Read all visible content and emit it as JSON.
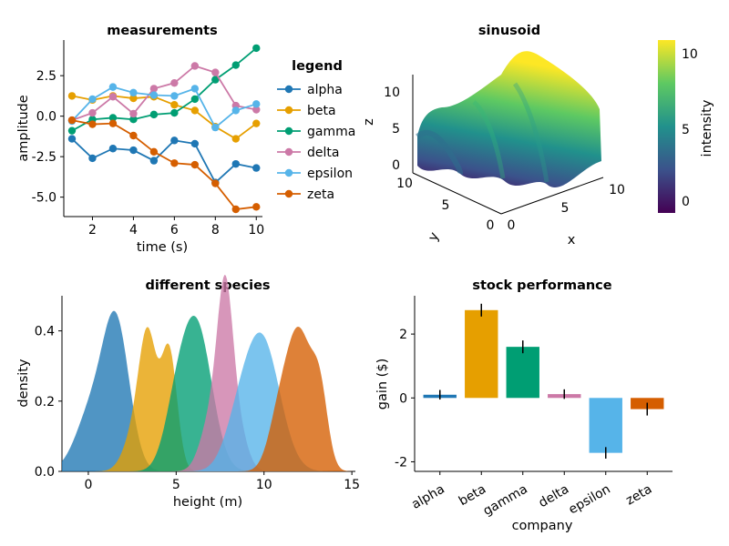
{
  "chart_data": [
    {
      "type": "line",
      "title": "measurements",
      "xlabel": "time (s)",
      "ylabel": "amplitude",
      "xlim": [
        0.6,
        10.3
      ],
      "ylim": [
        -6.2,
        4.7
      ],
      "xticks": [
        2,
        4,
        6,
        8,
        10
      ],
      "yticks": [
        2.5,
        0.0,
        -2.5,
        -5.0
      ],
      "ytick_labels": [
        "2.5",
        "0.0",
        "-2.5",
        "-5.0"
      ],
      "legend_title": "legend",
      "legend_position": "right",
      "x": [
        1,
        2,
        3,
        4,
        5,
        6,
        7,
        8,
        9,
        10
      ],
      "series": [
        {
          "name": "alpha",
          "color": "#1f77b4",
          "values": [
            -1.4,
            -2.6,
            -2.0,
            -2.1,
            -2.75,
            -1.5,
            -1.7,
            -4.1,
            -2.95,
            -3.2
          ]
        },
        {
          "name": "beta",
          "color": "#e69f00",
          "values": [
            1.25,
            1.0,
            1.25,
            1.1,
            1.2,
            0.7,
            0.35,
            -0.65,
            -1.4,
            -0.45
          ]
        },
        {
          "name": "gamma",
          "color": "#009e73",
          "values": [
            -0.9,
            -0.2,
            -0.1,
            -0.2,
            0.1,
            0.2,
            1.05,
            2.25,
            3.15,
            4.2
          ]
        },
        {
          "name": "delta",
          "color": "#cc79a7",
          "values": [
            -0.25,
            0.2,
            1.2,
            0.15,
            1.7,
            2.05,
            3.1,
            2.7,
            0.65,
            0.4
          ]
        },
        {
          "name": "epsilon",
          "color": "#56b4e9",
          "values": [
            -0.3,
            1.05,
            1.8,
            1.45,
            1.3,
            1.25,
            1.7,
            -0.7,
            0.35,
            0.75
          ]
        },
        {
          "name": "zeta",
          "color": "#d55e00",
          "values": [
            -0.25,
            -0.5,
            -0.45,
            -1.2,
            -2.2,
            -2.9,
            -3.0,
            -4.15,
            -5.75,
            -5.6
          ]
        }
      ]
    },
    {
      "type": "surface",
      "title": "sinusoid",
      "xlabel": "x",
      "ylabel": "y",
      "zlabel": "z",
      "xticks": [
        "0",
        "5",
        "10"
      ],
      "yticks": [
        "0",
        "5",
        "10"
      ],
      "zticks": [
        "0",
        "5",
        "10"
      ],
      "colorbar_label": "intensity",
      "colorbar_ticks": [
        "0",
        "5",
        "10"
      ],
      "colorbar_range": [
        -1,
        11
      ],
      "colormap": "viridis"
    },
    {
      "type": "area",
      "title": "different species",
      "xlabel": "height (m)",
      "ylabel": "density",
      "xlim": [
        -1.5,
        15.2
      ],
      "ylim": [
        0,
        0.5
      ],
      "xticks": [
        "0",
        "5",
        "10",
        "15"
      ],
      "yticks": [
        "0.0",
        "0.2",
        "0.4"
      ],
      "series": [
        {
          "color": "#1f77b4",
          "peaks": [
            [
              1.6,
              0.4,
              0.75
            ],
            [
              0.2,
              0.17,
              0.9
            ]
          ]
        },
        {
          "color": "#e69f00",
          "peaks": [
            [
              3.4,
              0.36,
              0.5
            ],
            [
              4.6,
              0.34,
              0.45
            ],
            [
              2.6,
              0.1,
              0.6
            ]
          ]
        },
        {
          "color": "#009e73",
          "peaks": [
            [
              6.2,
              0.4,
              0.85
            ],
            [
              5.0,
              0.15,
              0.7
            ]
          ]
        },
        {
          "color": "#cc79a7",
          "peaks": [
            [
              7.8,
              0.47,
              0.45
            ],
            [
              7.0,
              0.15,
              0.6
            ],
            [
              8.6,
              0.1,
              0.5
            ]
          ]
        },
        {
          "color": "#56b4e9",
          "peaks": [
            [
              9.9,
              0.37,
              1.0
            ],
            [
              8.5,
              0.1,
              0.8
            ]
          ]
        },
        {
          "color": "#d55e00",
          "peaks": [
            [
              12.0,
              0.39,
              0.75
            ],
            [
              13.2,
              0.18,
              0.45
            ],
            [
              10.8,
              0.12,
              0.6
            ]
          ]
        }
      ]
    },
    {
      "type": "bar",
      "title": "stock performance",
      "xlabel": "company",
      "ylabel": "gain ($)",
      "ylim": [
        -2.3,
        3.2
      ],
      "yticks": [
        "-2",
        "0",
        "2"
      ],
      "categories": [
        "alpha",
        "beta",
        "gamma",
        "delta",
        "epsilon",
        "zeta"
      ],
      "values": [
        0.1,
        2.75,
        1.6,
        0.12,
        -1.72,
        -0.35
      ],
      "errors": [
        0.15,
        0.2,
        0.2,
        0.15,
        0.18,
        0.2
      ],
      "colors": [
        "#1f77b4",
        "#e69f00",
        "#009e73",
        "#cc79a7",
        "#56b4e9",
        "#d55e00"
      ]
    }
  ]
}
